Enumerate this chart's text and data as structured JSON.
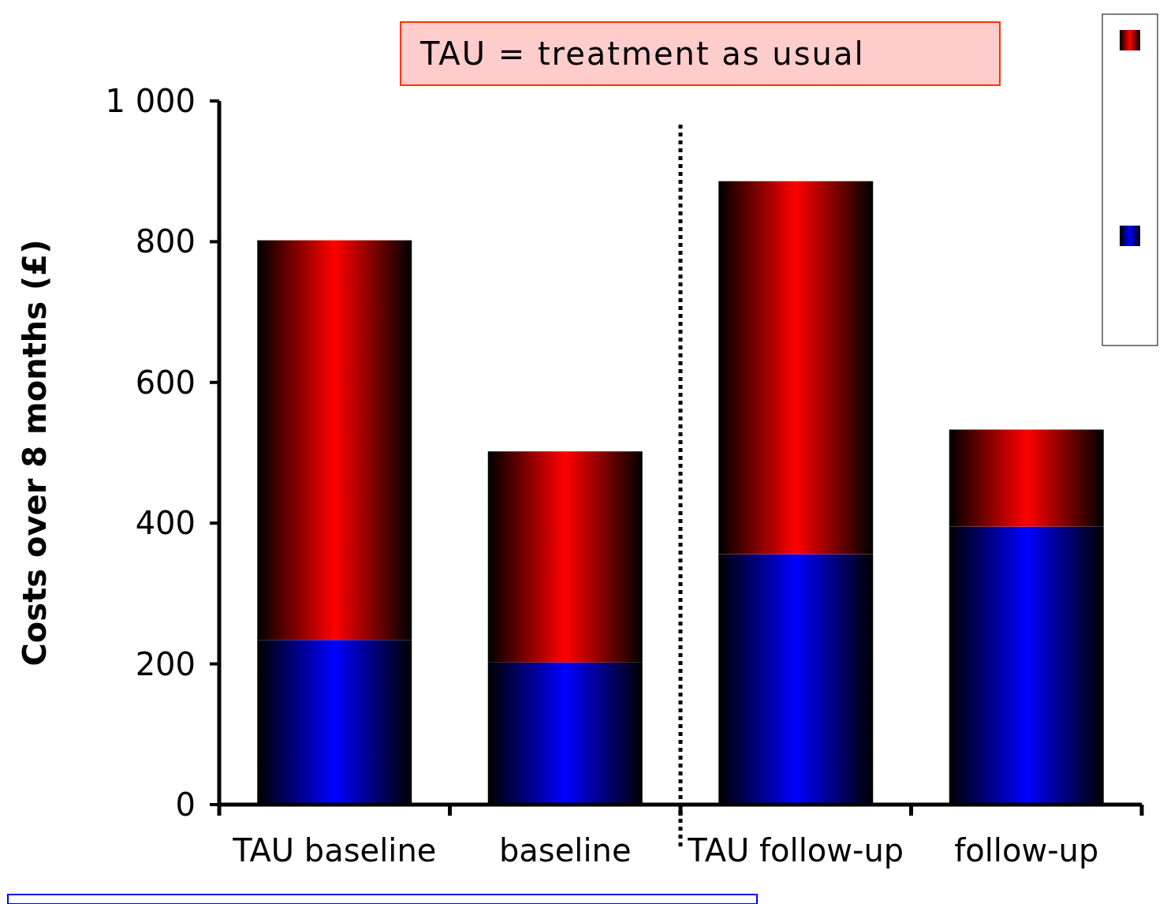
{
  "chart_data": {
    "type": "bar",
    "stacked": true,
    "ylabel": "Costs over 8 months (£)",
    "categories": [
      "TAU baseline",
      "baseline",
      "TAU follow-up",
      "follow-up"
    ],
    "series": [
      {
        "color": "#0000ff",
        "values": [
          234,
          202,
          356,
          395
        ]
      },
      {
        "color": "#ff0000",
        "values": [
          568,
          300,
          530,
          138
        ]
      }
    ],
    "ylim": [
      0,
      1000
    ],
    "yticks": [
      0,
      200,
      400,
      600,
      800,
      {
        "value": 1000,
        "label": "1 000"
      }
    ],
    "grid": false,
    "annotations": [
      "TAU = treatment as usual"
    ]
  }
}
